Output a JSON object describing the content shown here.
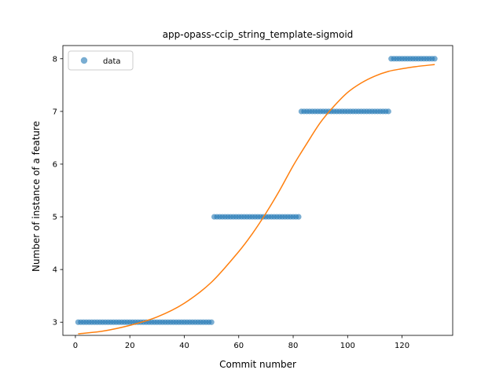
{
  "chart_data": {
    "type": "scatter",
    "title": "app-opass-ccip_string_template-sigmoid",
    "xlabel": "Commit number",
    "ylabel": "Number of instance of a feature",
    "xlim": [
      -4.6,
      138.6
    ],
    "ylim": [
      2.75,
      8.25
    ],
    "xticks": [
      0,
      20,
      40,
      60,
      80,
      100,
      120
    ],
    "yticks": [
      3,
      4,
      5,
      6,
      7,
      8
    ],
    "legend": {
      "position": "upper-left",
      "entries": [
        "data"
      ]
    },
    "series": [
      {
        "name": "data",
        "kind": "scatter",
        "color": "#1f77b4",
        "segments": [
          {
            "x_from": 1,
            "x_to": 50,
            "y": 3
          },
          {
            "x_from": 51,
            "x_to": 82,
            "y": 5
          },
          {
            "x_from": 83,
            "x_to": 115,
            "y": 7
          },
          {
            "x_from": 116,
            "x_to": 132,
            "y": 8
          }
        ]
      },
      {
        "kind": "line",
        "color": "#ff7f0e",
        "x": [
          1,
          10,
          20,
          30,
          40,
          50,
          60,
          65,
          70,
          75,
          80,
          85,
          90,
          95,
          100,
          105,
          110,
          115,
          120,
          125,
          132
        ],
        "y": [
          2.78,
          2.83,
          2.94,
          3.1,
          3.36,
          3.76,
          4.34,
          4.68,
          5.07,
          5.5,
          5.97,
          6.39,
          6.79,
          7.1,
          7.36,
          7.54,
          7.67,
          7.76,
          7.81,
          7.85,
          7.89
        ]
      }
    ]
  }
}
